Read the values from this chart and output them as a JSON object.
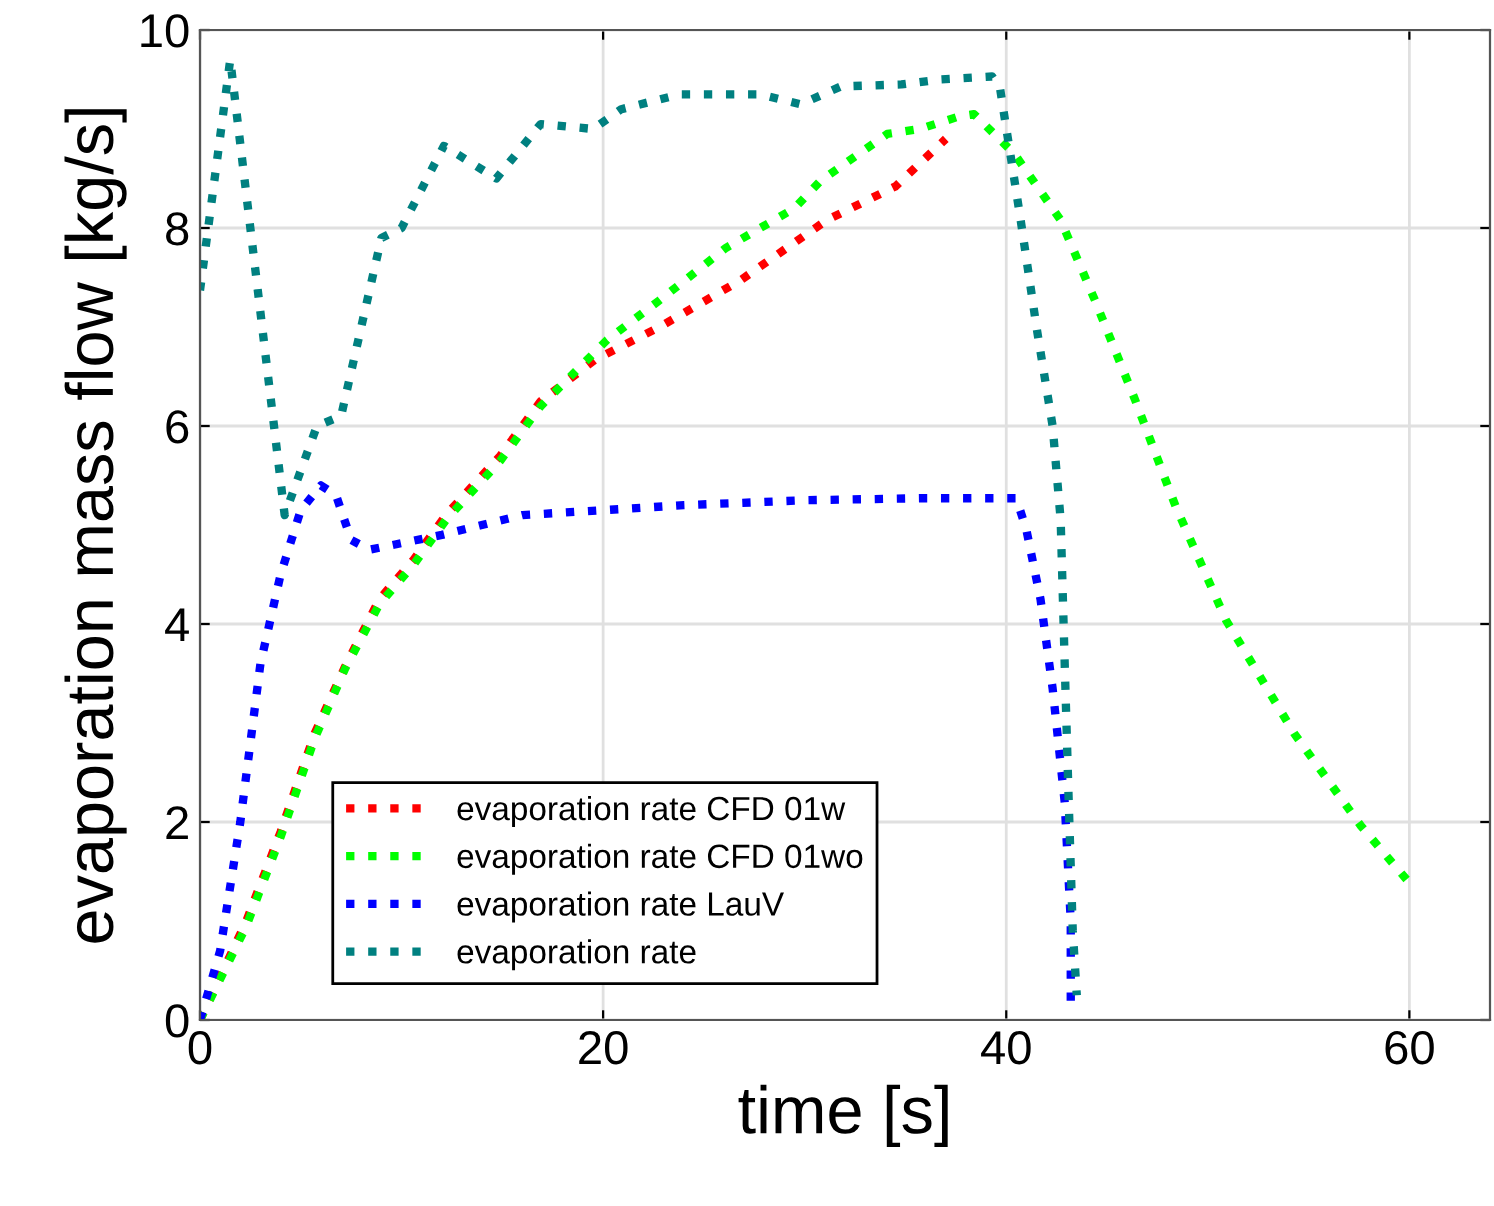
{
  "chart_data": {
    "type": "line",
    "xlabel": "time [s]",
    "ylabel": "evaporation mass flow [kg/s]",
    "xlim": [
      0,
      64
    ],
    "ylim": [
      0,
      10
    ],
    "xticks": [
      0,
      20,
      40,
      60
    ],
    "yticks": [
      0,
      2,
      4,
      6,
      8,
      10
    ],
    "grid": true,
    "legend": "bottom",
    "line_style": "dotted",
    "marker": "none",
    "series": [
      {
        "name": "evaporation rate CFD 01w",
        "color": "#ff0000",
        "x": [
          0,
          2.3,
          4,
          5.7,
          7.2,
          8.9,
          10.6,
          12.2,
          14.9,
          16.9,
          19.6,
          22.8,
          26.8,
          31.1,
          34.5,
          37.0
        ],
        "values": [
          0,
          1.0,
          1.9,
          2.9,
          3.57,
          4.25,
          4.65,
          5.1,
          5.7,
          6.25,
          6.67,
          7.0,
          7.47,
          8.08,
          8.42,
          8.9
        ]
      },
      {
        "name": "evaporation rate CFD 01wo",
        "color": "#00ff00",
        "x": [
          0,
          2.3,
          4,
          5.7,
          7.2,
          8.9,
          10.6,
          12.2,
          14.9,
          16.9,
          20.2,
          22.8,
          26.1,
          29.5,
          30.8,
          34.1,
          35.7,
          37.7,
          38.4,
          40.4,
          42.7,
          44.4,
          46.4,
          48.4,
          50.9,
          54.3,
          57.6,
          59.9
        ],
        "values": [
          0,
          0.95,
          1.85,
          2.85,
          3.55,
          4.2,
          4.6,
          5.05,
          5.65,
          6.2,
          6.87,
          7.27,
          7.8,
          8.2,
          8.48,
          8.95,
          9.0,
          9.13,
          9.15,
          8.75,
          8.08,
          7.27,
          6.26,
          5.19,
          4.04,
          2.89,
          1.96,
          1.41
        ]
      },
      {
        "name": "evaporation rate LauV",
        "color": "#0000ff",
        "x": [
          0,
          1,
          2,
          3,
          4,
          5,
          6,
          6.75,
          7.5,
          8.4,
          12,
          16,
          20,
          24,
          30,
          35.7,
          40.5,
          41,
          41.7,
          42.3,
          42.9,
          43.2,
          43.2
        ],
        "values": [
          0,
          0.7,
          2.0,
          3.6,
          4.5,
          5.15,
          5.4,
          5.3,
          4.85,
          4.75,
          4.9,
          5.1,
          5.15,
          5.2,
          5.25,
          5.27,
          5.27,
          4.95,
          4.25,
          3.35,
          2.2,
          1.0,
          0.1
        ]
      },
      {
        "name": "evaporation rate",
        "color": "#008080",
        "x": [
          0,
          1.5,
          4.2,
          5.8,
          7.0,
          9,
          10,
          12.1,
          14.7,
          16.9,
          19.5,
          20.9,
          23.8,
          27.8,
          29.8,
          31.8,
          34.8,
          36.7,
          39.3,
          39.7,
          40.7,
          41.5,
          42.3,
          42.7,
          42.9,
          43.1,
          43.3,
          43.5
        ],
        "values": [
          7.37,
          9.7,
          5.1,
          6.0,
          6.1,
          7.9,
          8.0,
          8.83,
          8.5,
          9.05,
          9.0,
          9.2,
          9.35,
          9.35,
          9.25,
          9.43,
          9.45,
          9.5,
          9.53,
          9.4,
          8.1,
          7.0,
          6.0,
          5.05,
          3.6,
          2.2,
          0.9,
          0.25
        ]
      }
    ]
  }
}
